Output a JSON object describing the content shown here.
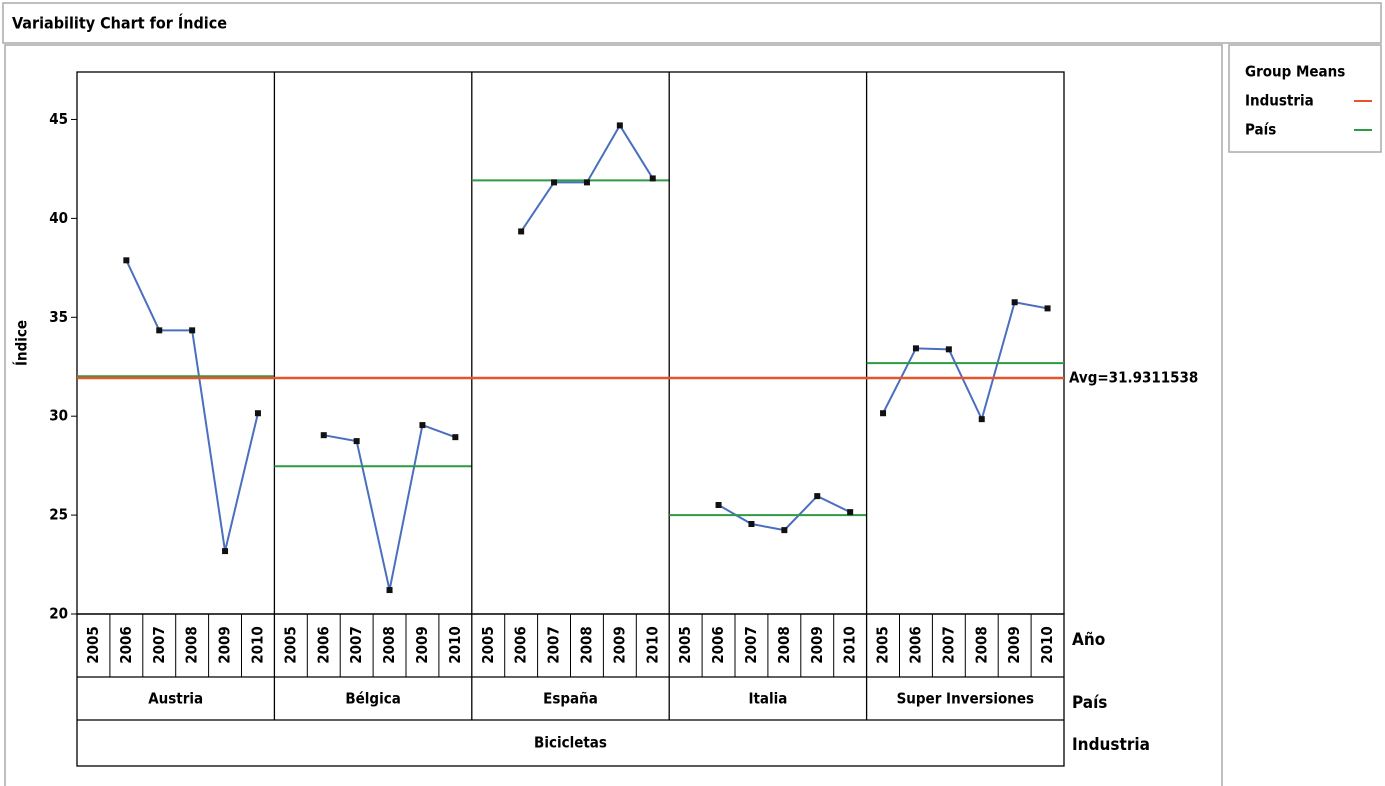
{
  "chart_data": {
    "type": "variability",
    "title": "Variability Chart for Índice",
    "ylabel": "Índice",
    "ylim": [
      20,
      47.4
    ],
    "yticks": [
      20,
      25,
      30,
      35,
      40,
      45
    ],
    "level_names": [
      "Año",
      "País",
      "Industria"
    ],
    "years": [
      "2005",
      "2006",
      "2007",
      "2008",
      "2009",
      "2010"
    ],
    "color": "#4a6fbf",
    "groups": [
      {
        "name": "Austria",
        "values": [
          null,
          37.88,
          34.34,
          34.34,
          23.18,
          30.15
        ],
        "mean": 32.02
      },
      {
        "name": "Bélgica",
        "values": [
          null,
          29.04,
          28.74,
          21.21,
          29.55,
          28.94
        ],
        "mean": 27.47
      },
      {
        "name": "España",
        "values": [
          null,
          39.34,
          41.82,
          41.82,
          44.7,
          42.02
        ],
        "mean": 41.92
      },
      {
        "name": "Italia",
        "values": [
          null,
          25.51,
          24.55,
          24.24,
          25.96,
          25.15
        ],
        "mean": 25.0
      },
      {
        "name": "Super Inversiones",
        "values": [
          30.15,
          33.43,
          33.38,
          29.85,
          35.76,
          35.45
        ],
        "mean": 32.68
      }
    ],
    "industry": {
      "name": "Bicicletas",
      "mean": 31.9311538,
      "mean_label": "Avg=31.9311538"
    },
    "legend": {
      "title": "Group Means",
      "entries": [
        {
          "name": "Industria",
          "color": "#e8542a"
        },
        {
          "name": "País",
          "color": "#2e9a44"
        }
      ]
    }
  }
}
